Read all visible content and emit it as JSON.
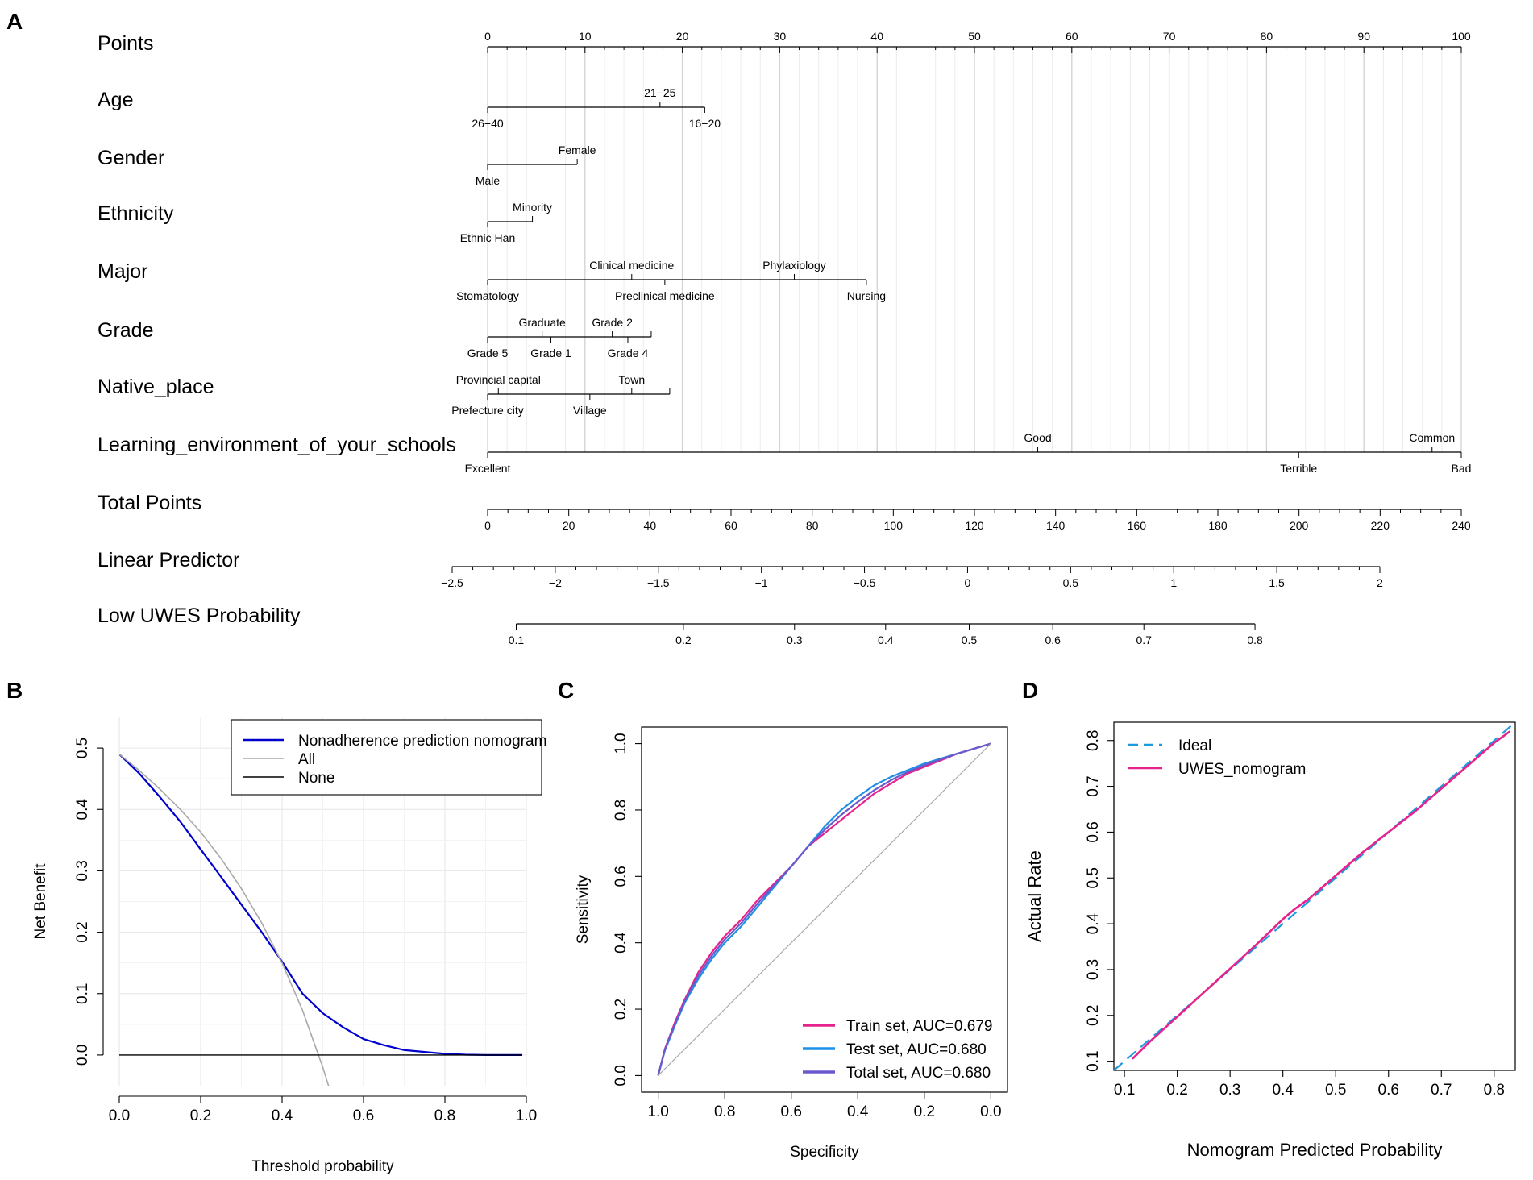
{
  "panels": {
    "A": "A",
    "B": "B",
    "C": "C",
    "D": "D"
  },
  "colors": {
    "nomogram_blue": "#0000CD",
    "all_gray": "#A9A9A9",
    "train_magenta": "#E6228C",
    "test_blue": "#1E90E8",
    "total_purple": "#6A5ACD",
    "ideal_dash": "#1E9BE0",
    "uwes_magenta": "#E6228C",
    "grid": "#E6E6E6"
  },
  "chart_data": [
    {
      "type": "nomogram",
      "panel": "A",
      "scales": [
        {
          "name": "Points",
          "ticks": [
            0,
            10,
            20,
            30,
            40,
            50,
            60,
            70,
            80,
            90,
            100
          ]
        },
        {
          "name": "Age",
          "levels": [
            {
              "label": "26−40",
              "points": 0,
              "side": "below"
            },
            {
              "label": "21−25",
              "points": 17.7,
              "side": "above"
            },
            {
              "label": "16−20",
              "points": 22.3,
              "side": "below"
            }
          ]
        },
        {
          "name": "Gender",
          "levels": [
            {
              "label": "Male",
              "points": 0,
              "side": "below"
            },
            {
              "label": "Female",
              "points": 9.2,
              "side": "above"
            }
          ]
        },
        {
          "name": "Ethnicity",
          "levels": [
            {
              "label": "Ethnic Han",
              "points": 0,
              "side": "below"
            },
            {
              "label": "Minority",
              "points": 4.6,
              "side": "above"
            }
          ]
        },
        {
          "name": "Major",
          "levels": [
            {
              "label": "Stomatology",
              "points": 0,
              "side": "below"
            },
            {
              "label": "Clinical medicine",
              "points": 14.8,
              "side": "above"
            },
            {
              "label": "Preclinical medicine",
              "points": 18.2,
              "side": "below"
            },
            {
              "label": "Phylaxiology",
              "points": 31.5,
              "side": "above"
            },
            {
              "label": "Nursing",
              "points": 38.9,
              "side": "below"
            }
          ]
        },
        {
          "name": "Grade",
          "levels": [
            {
              "label": "Grade 5",
              "points": 0,
              "side": "below"
            },
            {
              "label": "Graduate",
              "points": 5.6,
              "side": "above"
            },
            {
              "label": "Grade 1",
              "points": 6.5,
              "side": "below"
            },
            {
              "label": "Grade 2",
              "points": 12.8,
              "side": "above"
            },
            {
              "label": "Grade 4",
              "points": 14.4,
              "side": "below"
            },
            {
              "label": "",
              "points": 16.8,
              "side": "above"
            }
          ]
        },
        {
          "name": "Native_place",
          "levels": [
            {
              "label": "Prefecture city",
              "points": 0,
              "side": "below"
            },
            {
              "label": "Provincial capital",
              "points": 1.1,
              "side": "above"
            },
            {
              "label": "Village",
              "points": 10.5,
              "side": "below"
            },
            {
              "label": "Town",
              "points": 14.8,
              "side": "above"
            },
            {
              "label": "",
              "points": 18.7,
              "side": "above"
            }
          ]
        },
        {
          "name": "Learning_environment_of_your_schools",
          "levels": [
            {
              "label": "Excellent",
              "points": 0,
              "side": "below"
            },
            {
              "label": "Good",
              "points": 56.5,
              "side": "above"
            },
            {
              "label": "Terrible",
              "points": 83.3,
              "side": "below"
            },
            {
              "label": "Common",
              "points": 97,
              "side": "above"
            },
            {
              "label": "Bad",
              "points": 100,
              "side": "below"
            }
          ]
        },
        {
          "name": "Total Points",
          "range": [
            0,
            240
          ],
          "ticks": [
            0,
            20,
            40,
            60,
            80,
            100,
            120,
            140,
            160,
            180,
            200,
            220,
            240
          ]
        },
        {
          "name": "Linear Predictor",
          "range": [
            -2.5,
            2
          ],
          "tick_labels": [
            "−2.5",
            "−2",
            "−1.5",
            "−1",
            "−0.5",
            "0",
            "0.5",
            "1",
            "1.5",
            "2"
          ]
        },
        {
          "name": "Low UWES Probability",
          "ticks": [
            0.1,
            0.2,
            0.3,
            0.4,
            0.5,
            0.6,
            0.7,
            0.8
          ],
          "tick_labels": [
            "0.1",
            "0.2",
            "0.3",
            "0.4",
            "0.5",
            "0.6",
            "0.7",
            "0.8"
          ]
        }
      ]
    },
    {
      "type": "line",
      "panel": "B",
      "xlabel": "Threshold probability",
      "ylabel": "Net Benefit",
      "xlim": [
        0,
        1
      ],
      "ylim": [
        -0.05,
        0.55
      ],
      "x_ticks": [
        "0.0",
        "0.2",
        "0.4",
        "0.6",
        "0.8",
        "1.0"
      ],
      "y_ticks": [
        "0.0",
        "0.1",
        "0.2",
        "0.3",
        "0.4",
        "0.5"
      ],
      "legend": "top-right",
      "series": [
        {
          "name": "Nonadherence prediction nomogram",
          "color": "#0000CD",
          "x": [
            0,
            0.05,
            0.1,
            0.15,
            0.2,
            0.25,
            0.3,
            0.35,
            0.4,
            0.45,
            0.5,
            0.55,
            0.6,
            0.65,
            0.7,
            0.75,
            0.8,
            0.85,
            0.9,
            0.95,
            0.99
          ],
          "y": [
            0.49,
            0.458,
            0.42,
            0.38,
            0.335,
            0.29,
            0.245,
            0.2,
            0.152,
            0.1,
            0.068,
            0.045,
            0.026,
            0.016,
            0.008,
            0.005,
            0.002,
            0.0005,
            0,
            0,
            0
          ]
        },
        {
          "name": "All",
          "color": "#A9A9A9",
          "x": [
            0,
            0.05,
            0.1,
            0.15,
            0.2,
            0.25,
            0.3,
            0.35,
            0.4,
            0.45,
            0.5,
            0.52
          ],
          "y": [
            0.49,
            0.463,
            0.433,
            0.4,
            0.363,
            0.32,
            0.271,
            0.215,
            0.15,
            0.073,
            -0.02,
            -0.063
          ]
        },
        {
          "name": "None",
          "color": "#000000",
          "x": [
            0,
            0.99
          ],
          "y": [
            0,
            0
          ]
        }
      ]
    },
    {
      "type": "line",
      "panel": "C",
      "xlabel": "Specificity",
      "ylabel": "Sensitivity",
      "xlim": [
        1.05,
        -0.05
      ],
      "ylim": [
        -0.05,
        1.05
      ],
      "x_ticks": [
        "1.0",
        "0.8",
        "0.6",
        "0.4",
        "0.2",
        "0.0"
      ],
      "y_ticks": [
        "0.0",
        "0.2",
        "0.4",
        "0.6",
        "0.8",
        "1.0"
      ],
      "legend": "bottom-right",
      "series": [
        {
          "name": "Train set, AUC=0.679",
          "color": "#E6228C",
          "x": [
            1,
            0.98,
            0.95,
            0.92,
            0.88,
            0.84,
            0.8,
            0.75,
            0.7,
            0.65,
            0.6,
            0.55,
            0.5,
            0.45,
            0.4,
            0.35,
            0.3,
            0.25,
            0.2,
            0.15,
            0.1,
            0.05,
            0
          ],
          "y": [
            0,
            0.08,
            0.16,
            0.23,
            0.31,
            0.37,
            0.42,
            0.47,
            0.53,
            0.58,
            0.63,
            0.69,
            0.73,
            0.77,
            0.81,
            0.85,
            0.88,
            0.91,
            0.93,
            0.95,
            0.97,
            0.985,
            1
          ]
        },
        {
          "name": "Test set, AUC=0.680",
          "color": "#1E90E8",
          "x": [
            1,
            0.98,
            0.95,
            0.92,
            0.88,
            0.84,
            0.8,
            0.75,
            0.7,
            0.65,
            0.6,
            0.55,
            0.5,
            0.45,
            0.4,
            0.35,
            0.3,
            0.25,
            0.2,
            0.15,
            0.1,
            0.05,
            0
          ],
          "y": [
            0,
            0.075,
            0.15,
            0.22,
            0.29,
            0.35,
            0.4,
            0.45,
            0.51,
            0.57,
            0.63,
            0.69,
            0.75,
            0.8,
            0.84,
            0.875,
            0.9,
            0.92,
            0.94,
            0.955,
            0.97,
            0.985,
            1
          ]
        },
        {
          "name": "Total set, AUC=0.680",
          "color": "#6A5ACD",
          "x": [
            1,
            0.98,
            0.95,
            0.92,
            0.88,
            0.84,
            0.8,
            0.75,
            0.7,
            0.65,
            0.6,
            0.55,
            0.5,
            0.45,
            0.4,
            0.35,
            0.3,
            0.25,
            0.2,
            0.15,
            0.1,
            0.05,
            0
          ],
          "y": [
            0,
            0.078,
            0.155,
            0.225,
            0.3,
            0.36,
            0.41,
            0.46,
            0.52,
            0.575,
            0.63,
            0.69,
            0.74,
            0.785,
            0.825,
            0.86,
            0.89,
            0.915,
            0.935,
            0.953,
            0.97,
            0.985,
            1
          ]
        },
        {
          "name": "reference",
          "color": "#A9A9A9",
          "x": [
            1,
            0
          ],
          "y": [
            0,
            1
          ]
        }
      ]
    },
    {
      "type": "line",
      "panel": "D",
      "xlabel": "Nomogram Predicted Probability",
      "ylabel": "Actual Rate",
      "xlim": [
        0.08,
        0.84
      ],
      "ylim": [
        0.08,
        0.84
      ],
      "x_ticks": [
        "0.1",
        "0.2",
        "0.3",
        "0.4",
        "0.5",
        "0.6",
        "0.7",
        "0.8"
      ],
      "y_ticks": [
        "0.1",
        "0.2",
        "0.3",
        "0.4",
        "0.5",
        "0.6",
        "0.7",
        "0.8"
      ],
      "legend": "top-left",
      "series": [
        {
          "name": "Ideal",
          "color": "#1E9BE0",
          "dashed": true,
          "x": [
            0.08,
            0.84
          ],
          "y": [
            0.08,
            0.84
          ]
        },
        {
          "name": "UWES_nomogram",
          "color": "#E6228C",
          "x": [
            0.115,
            0.15,
            0.2,
            0.25,
            0.3,
            0.35,
            0.4,
            0.42,
            0.45,
            0.5,
            0.55,
            0.6,
            0.65,
            0.7,
            0.75,
            0.8,
            0.83
          ],
          "y": [
            0.105,
            0.145,
            0.197,
            0.25,
            0.302,
            0.355,
            0.41,
            0.43,
            0.455,
            0.505,
            0.555,
            0.6,
            0.645,
            0.695,
            0.745,
            0.795,
            0.82
          ]
        }
      ]
    }
  ]
}
